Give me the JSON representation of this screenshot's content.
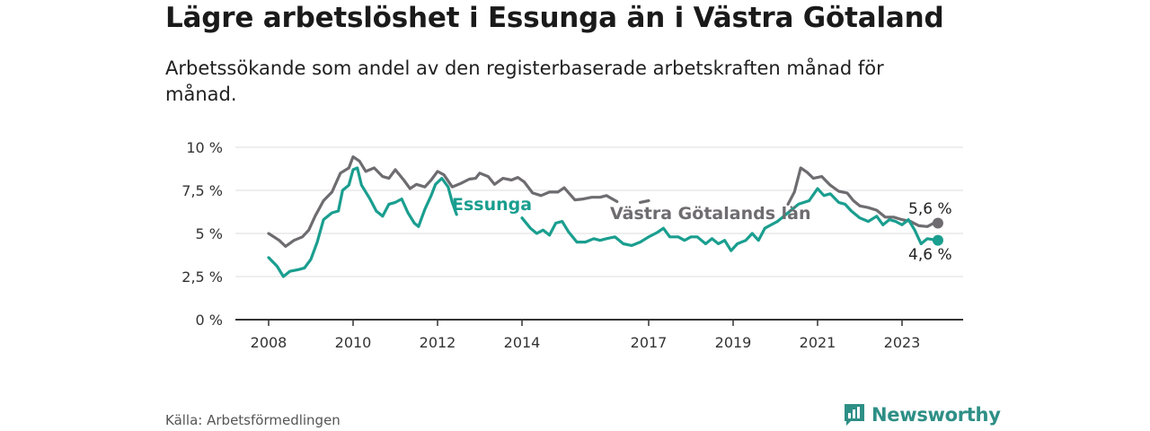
{
  "header": {
    "title": "Lägre arbetslöshet i Essunga än i Västra Götaland",
    "subtitle": "Arbetssökande som andel av den registerbaserade arbetskraften månad för månad."
  },
  "footer": {
    "source": "Källa: Arbetsförmedlingen",
    "brand": "Newsworthy"
  },
  "colors": {
    "essunga": "#1a9e8f",
    "vastra": "#6e6c70",
    "grid": "#dddddd",
    "axis": "#333333",
    "brand": "#2e8f86"
  },
  "chart_data": {
    "type": "line",
    "title": "Lägre arbetslöshet i Essunga än i Västra Götaland",
    "xlabel": "",
    "ylabel": "",
    "xlim": [
      2007.9,
      2024.1
    ],
    "ylim": [
      0,
      10
    ],
    "grid": true,
    "y_ticks": [
      {
        "value": 0,
        "label": "0 %"
      },
      {
        "value": 2.5,
        "label": "2,5 %"
      },
      {
        "value": 5,
        "label": "5 %"
      },
      {
        "value": 7.5,
        "label": "7,5 %"
      },
      {
        "value": 10,
        "label": "10 %"
      }
    ],
    "x_ticks": [
      {
        "value": 2008,
        "label": "2008"
      },
      {
        "value": 2010,
        "label": "2010"
      },
      {
        "value": 2012,
        "label": "2012"
      },
      {
        "value": 2014,
        "label": "2014"
      },
      {
        "value": 2017,
        "label": "2017"
      },
      {
        "value": 2019,
        "label": "2019"
      },
      {
        "value": 2021,
        "label": "2021"
      },
      {
        "value": 2023,
        "label": "2023"
      }
    ],
    "series": [
      {
        "name": "Västra Götalands län",
        "label": "Västra Götalands län",
        "end_label": "5,6 %",
        "colorKey": "vastra",
        "points": [
          [
            2008.0,
            5.0
          ],
          [
            2008.25,
            4.6
          ],
          [
            2008.4,
            4.25
          ],
          [
            2008.6,
            4.6
          ],
          [
            2008.8,
            4.8
          ],
          [
            2008.95,
            5.2
          ],
          [
            2009.1,
            6.0
          ],
          [
            2009.3,
            6.9
          ],
          [
            2009.5,
            7.4
          ],
          [
            2009.7,
            8.5
          ],
          [
            2009.9,
            8.8
          ],
          [
            2010.0,
            9.45
          ],
          [
            2010.15,
            9.2
          ],
          [
            2010.3,
            8.6
          ],
          [
            2010.5,
            8.8
          ],
          [
            2010.7,
            8.3
          ],
          [
            2010.85,
            8.2
          ],
          [
            2011.0,
            8.7
          ],
          [
            2011.2,
            8.1
          ],
          [
            2011.35,
            7.6
          ],
          [
            2011.5,
            7.85
          ],
          [
            2011.7,
            7.7
          ],
          [
            2011.85,
            8.1
          ],
          [
            2012.0,
            8.6
          ],
          [
            2012.15,
            8.4
          ],
          [
            2012.35,
            7.7
          ],
          [
            2012.55,
            7.9
          ],
          [
            2012.75,
            8.15
          ],
          [
            2012.9,
            8.2
          ],
          [
            2013.0,
            8.5
          ],
          [
            2013.2,
            8.3
          ],
          [
            2013.35,
            7.85
          ],
          [
            2013.55,
            8.2
          ],
          [
            2013.75,
            8.1
          ],
          [
            2013.9,
            8.25
          ],
          [
            2014.05,
            8.0
          ],
          [
            2014.25,
            7.35
          ],
          [
            2014.45,
            7.2
          ],
          [
            2014.65,
            7.4
          ],
          [
            2014.85,
            7.4
          ],
          [
            2015.0,
            7.65
          ],
          [
            2015.25,
            6.95
          ],
          [
            2015.45,
            7.0
          ],
          [
            2015.65,
            7.1
          ],
          [
            2015.85,
            7.1
          ],
          [
            2016.0,
            7.2
          ],
          [
            2016.25,
            6.85
          ]
        ],
        "points_b": [
          [
            2016.8,
            6.8
          ],
          [
            2017.0,
            6.9
          ]
        ],
        "points_c": [
          [
            2020.3,
            6.7
          ],
          [
            2020.45,
            7.4
          ],
          [
            2020.6,
            8.8
          ],
          [
            2020.75,
            8.55
          ],
          [
            2020.9,
            8.2
          ],
          [
            2021.1,
            8.3
          ],
          [
            2021.3,
            7.8
          ],
          [
            2021.5,
            7.45
          ],
          [
            2021.7,
            7.35
          ],
          [
            2021.85,
            6.9
          ],
          [
            2022.0,
            6.6
          ],
          [
            2022.2,
            6.5
          ],
          [
            2022.4,
            6.35
          ],
          [
            2022.6,
            5.95
          ],
          [
            2022.8,
            5.95
          ],
          [
            2023.0,
            5.8
          ],
          [
            2023.2,
            5.7
          ],
          [
            2023.4,
            5.45
          ],
          [
            2023.6,
            5.4
          ],
          [
            2023.75,
            5.6
          ],
          [
            2023.85,
            5.6
          ]
        ]
      },
      {
        "name": "Essunga",
        "label": "Essunga",
        "end_label": "4,6 %",
        "colorKey": "essunga",
        "points": [
          [
            2008.0,
            3.6
          ],
          [
            2008.2,
            3.1
          ],
          [
            2008.35,
            2.5
          ],
          [
            2008.5,
            2.8
          ],
          [
            2008.7,
            2.9
          ],
          [
            2008.85,
            3.0
          ],
          [
            2009.0,
            3.5
          ],
          [
            2009.15,
            4.5
          ],
          [
            2009.3,
            5.8
          ],
          [
            2009.5,
            6.2
          ],
          [
            2009.65,
            6.3
          ],
          [
            2009.75,
            7.5
          ],
          [
            2009.9,
            7.8
          ],
          [
            2010.0,
            8.7
          ],
          [
            2010.1,
            8.8
          ],
          [
            2010.2,
            7.8
          ],
          [
            2010.4,
            7.0
          ],
          [
            2010.55,
            6.3
          ],
          [
            2010.7,
            6.0
          ],
          [
            2010.85,
            6.7
          ],
          [
            2011.0,
            6.8
          ],
          [
            2011.15,
            7.0
          ],
          [
            2011.3,
            6.2
          ],
          [
            2011.45,
            5.6
          ],
          [
            2011.55,
            5.4
          ],
          [
            2011.7,
            6.4
          ],
          [
            2011.85,
            7.2
          ],
          [
            2011.95,
            7.85
          ],
          [
            2012.1,
            8.2
          ],
          [
            2012.25,
            7.7
          ],
          [
            2012.35,
            6.8
          ],
          [
            2012.45,
            6.1
          ]
        ],
        "points_b": [
          [
            2014.0,
            5.9
          ],
          [
            2014.2,
            5.3
          ],
          [
            2014.35,
            5.0
          ],
          [
            2014.5,
            5.2
          ],
          [
            2014.65,
            4.9
          ],
          [
            2014.8,
            5.6
          ],
          [
            2014.95,
            5.7
          ],
          [
            2015.1,
            5.1
          ],
          [
            2015.3,
            4.5
          ],
          [
            2015.5,
            4.5
          ],
          [
            2015.7,
            4.7
          ],
          [
            2015.85,
            4.6
          ],
          [
            2016.0,
            4.7
          ],
          [
            2016.2,
            4.8
          ],
          [
            2016.4,
            4.4
          ],
          [
            2016.6,
            4.3
          ],
          [
            2016.8,
            4.5
          ],
          [
            2017.0,
            4.8
          ],
          [
            2017.2,
            5.05
          ],
          [
            2017.35,
            5.3
          ],
          [
            2017.5,
            4.8
          ],
          [
            2017.7,
            4.8
          ],
          [
            2017.85,
            4.6
          ],
          [
            2018.0,
            4.8
          ],
          [
            2018.15,
            4.8
          ],
          [
            2018.35,
            4.4
          ],
          [
            2018.5,
            4.7
          ],
          [
            2018.65,
            4.4
          ],
          [
            2018.8,
            4.6
          ],
          [
            2018.95,
            4.0
          ],
          [
            2019.1,
            4.4
          ],
          [
            2019.3,
            4.6
          ],
          [
            2019.45,
            5.0
          ],
          [
            2019.6,
            4.6
          ],
          [
            2019.75,
            5.3
          ],
          [
            2019.9,
            5.5
          ],
          [
            2020.05,
            5.7
          ]
        ],
        "points_c": [
          [
            2020.8,
            6.9
          ],
          [
            2021.0,
            7.6
          ],
          [
            2021.15,
            7.2
          ],
          [
            2021.3,
            7.3
          ],
          [
            2021.5,
            6.8
          ],
          [
            2021.65,
            6.7
          ],
          [
            2021.8,
            6.3
          ],
          [
            2022.0,
            5.9
          ],
          [
            2022.2,
            5.7
          ],
          [
            2022.4,
            6.0
          ],
          [
            2022.55,
            5.5
          ],
          [
            2022.7,
            5.8
          ],
          [
            2022.85,
            5.7
          ],
          [
            2023.0,
            5.5
          ],
          [
            2023.15,
            5.8
          ],
          [
            2023.3,
            5.2
          ],
          [
            2023.45,
            4.4
          ],
          [
            2023.6,
            4.7
          ],
          [
            2023.85,
            4.6
          ]
        ],
        "points_d": [
          [
            2020.05,
            5.7
          ],
          [
            2020.3,
            6.2
          ],
          [
            2020.55,
            6.7
          ],
          [
            2020.8,
            6.9
          ]
        ]
      }
    ]
  }
}
